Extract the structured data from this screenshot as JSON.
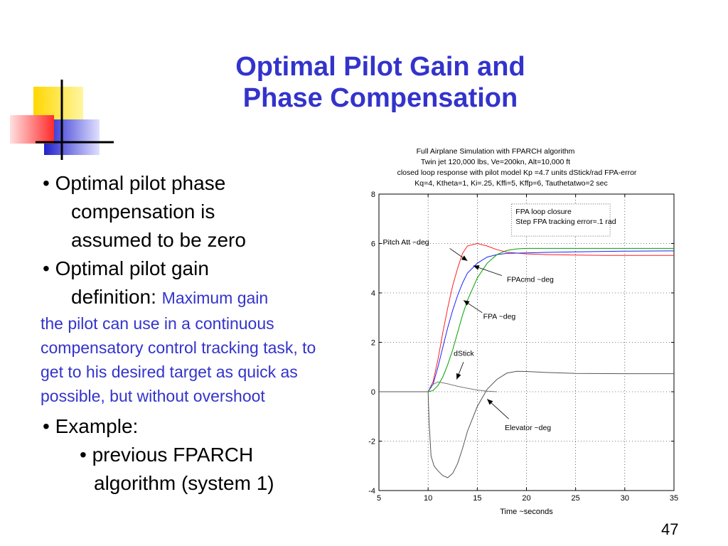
{
  "slide": {
    "title_line1": "Optimal Pilot Gain and",
    "title_line2": "Phase Compensation",
    "page_number": "47"
  },
  "bullets": {
    "b1_line1": "•  Optimal pilot phase",
    "b1_line2": "compensation is",
    "b1_line3": "assumed to be zero",
    "b2_line1": "•  Optimal pilot gain",
    "b2_line2_label": "definition:",
    "b2_line2_inline": "Maximum gain",
    "b2_body": "the pilot can use in a continuous compensatory control tracking task, to get to his desired target as quick as possible, but without overshoot",
    "b3": "• Example:",
    "b3_sub1": "• previous FPARCH",
    "b3_sub2": "algorithm (system 1)"
  },
  "colors": {
    "title": "#3333cc",
    "pitch_att": "#ff2020",
    "fpacmd": "#2020ff",
    "fpa": "#00a000",
    "dstick": "#777777",
    "elevator": "#555555"
  },
  "chart_data": {
    "type": "line",
    "title_lines": [
      "Full Airplane Simulation with FPARCH algorithm",
      "Twin jet 120,000 lbs, Ve=200kn, Alt=10,000 ft",
      "closed loop response with pilot model Kp =4.7 units dStick/rad FPA-error",
      "Kq=4, Ktheta=1, Ki=.25, Kffi=5, Kffp=6, Tauthetatwo=2 sec"
    ],
    "xlabel": "Time ~seconds",
    "ylabel": "",
    "xlim": [
      5,
      35
    ],
    "ylim": [
      -4,
      8
    ],
    "xticks": [
      5,
      10,
      15,
      20,
      25,
      30,
      35
    ],
    "yticks": [
      -4,
      -2,
      0,
      2,
      4,
      6,
      8
    ],
    "grid": true,
    "legend_box": [
      "FPA loop closure",
      "Step FPA tracking error=.1 rad"
    ],
    "series": [
      {
        "name": "Pitch Att ~deg",
        "color_key": "pitch_att",
        "x": [
          5,
          10,
          10.5,
          11,
          11.5,
          12,
          12.5,
          13,
          13.5,
          14,
          15,
          16,
          17,
          18,
          20,
          22,
          25,
          28,
          30,
          35
        ],
        "y": [
          0,
          0,
          0.4,
          1.3,
          2.4,
          3.4,
          4.3,
          5.0,
          5.6,
          5.9,
          6.0,
          5.9,
          5.75,
          5.65,
          5.58,
          5.55,
          5.53,
          5.52,
          5.52,
          5.52
        ]
      },
      {
        "name": "FPAcmd ~deg",
        "color_key": "fpacmd",
        "x": [
          5,
          10,
          10.5,
          11,
          11.5,
          12,
          12.5,
          13,
          13.5,
          14,
          15,
          16,
          17,
          18,
          20,
          22,
          25,
          28,
          30,
          35
        ],
        "y": [
          0,
          0,
          0.3,
          1.0,
          1.8,
          2.6,
          3.3,
          3.9,
          4.4,
          4.8,
          5.2,
          5.45,
          5.55,
          5.6,
          5.62,
          5.64,
          5.66,
          5.68,
          5.69,
          5.7
        ]
      },
      {
        "name": "FPA ~deg",
        "color_key": "fpa",
        "x": [
          5,
          10,
          10.5,
          11,
          11.5,
          12,
          12.5,
          13,
          13.5,
          14,
          15,
          16,
          17,
          18,
          19,
          20,
          22,
          25,
          30,
          35
        ],
        "y": [
          0,
          0,
          0.05,
          0.25,
          0.6,
          1.1,
          1.7,
          2.4,
          3.1,
          3.7,
          4.6,
          5.2,
          5.55,
          5.72,
          5.78,
          5.8,
          5.8,
          5.8,
          5.8,
          5.8
        ]
      },
      {
        "name": "dStick",
        "color_key": "dstick",
        "x": [
          5,
          10,
          10.3,
          11,
          12,
          13,
          14,
          15,
          16,
          17
        ],
        "y": [
          0,
          0,
          0.25,
          0.4,
          0.32,
          0.22,
          0.14,
          0.07,
          0.02,
          0.0
        ]
      },
      {
        "name": "Elevator ~deg",
        "color_key": "elevator",
        "x": [
          5,
          10,
          10.1,
          10.3,
          10.6,
          11,
          11.5,
          12,
          12.5,
          13,
          13.5,
          14,
          15,
          16,
          17,
          18,
          19,
          20,
          22,
          25,
          30,
          35
        ],
        "y": [
          0,
          0,
          -1.2,
          -2.6,
          -3.0,
          -3.2,
          -3.4,
          -3.48,
          -3.3,
          -2.9,
          -2.3,
          -1.6,
          -0.6,
          0.1,
          0.5,
          0.75,
          0.83,
          0.82,
          0.78,
          0.74,
          0.73,
          0.73
        ]
      }
    ],
    "annotations": [
      {
        "text": "Pitch Att ~deg"
      },
      {
        "text": "FPAcmd ~deg"
      },
      {
        "text": "FPA ~deg"
      },
      {
        "text": "dStick"
      },
      {
        "text": "Elevator ~deg"
      }
    ]
  }
}
